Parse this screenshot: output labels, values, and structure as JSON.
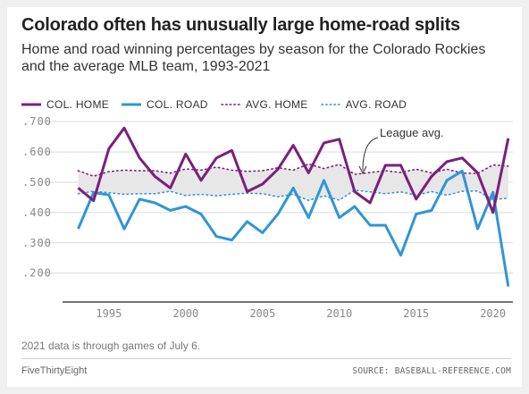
{
  "title": "Colorado often has unusually large home-road splits",
  "subtitle": "Home and road winning percentages by season for the Colorado Rockies and the average MLB team, 1993-2021",
  "footnote": "2021 data is through games of July 6.",
  "brand": "FiveThirtyEight",
  "source": "SOURCE: BASEBALL-REFERENCE.COM",
  "colors": {
    "col_home": "#7b1f7d",
    "col_road": "#3095d6",
    "band": "#e7e7e7",
    "grid": "#d9d9d9",
    "axis": "#222222"
  },
  "chart_data": {
    "type": "line",
    "x": [
      1993,
      1994,
      1995,
      1996,
      1997,
      1998,
      1999,
      2000,
      2001,
      2002,
      2003,
      2004,
      2005,
      2006,
      2007,
      2008,
      2009,
      2010,
      2011,
      2012,
      2013,
      2014,
      2015,
      2016,
      2017,
      2018,
      2019,
      2020,
      2021
    ],
    "series": [
      {
        "name": "COL. HOME",
        "style": "solid",
        "color": "#7b1f7d",
        "values": [
          0.481,
          0.439,
          0.611,
          0.679,
          0.58,
          0.519,
          0.481,
          0.593,
          0.506,
          0.58,
          0.605,
          0.469,
          0.494,
          0.543,
          0.622,
          0.531,
          0.63,
          0.642,
          0.469,
          0.432,
          0.556,
          0.556,
          0.444,
          0.519,
          0.568,
          0.58,
          0.531,
          0.4,
          0.645
        ]
      },
      {
        "name": "COL. ROAD",
        "style": "solid",
        "color": "#3095d6",
        "values": [
          0.346,
          0.466,
          0.458,
          0.346,
          0.444,
          0.432,
          0.407,
          0.42,
          0.395,
          0.321,
          0.309,
          0.37,
          0.333,
          0.395,
          0.481,
          0.383,
          0.506,
          0.383,
          0.42,
          0.358,
          0.358,
          0.259,
          0.395,
          0.407,
          0.506,
          0.537,
          0.346,
          0.467,
          0.156
        ]
      },
      {
        "name": "AVG. HOME",
        "style": "dotted",
        "color": "#7b1f7d",
        "values": [
          0.538,
          0.52,
          0.535,
          0.54,
          0.538,
          0.538,
          0.53,
          0.544,
          0.54,
          0.55,
          0.54,
          0.536,
          0.538,
          0.548,
          0.54,
          0.56,
          0.545,
          0.559,
          0.526,
          0.532,
          0.538,
          0.532,
          0.543,
          0.531,
          0.543,
          0.53,
          0.529,
          0.557,
          0.553
        ]
      },
      {
        "name": "AVG. ROAD",
        "style": "dotted",
        "color": "#3095d6",
        "values": [
          0.462,
          0.47,
          0.465,
          0.46,
          0.462,
          0.462,
          0.47,
          0.456,
          0.46,
          0.455,
          0.46,
          0.464,
          0.462,
          0.452,
          0.46,
          0.44,
          0.455,
          0.441,
          0.474,
          0.468,
          0.462,
          0.468,
          0.457,
          0.469,
          0.457,
          0.47,
          0.471,
          0.443,
          0.447
        ]
      }
    ],
    "xticks": [
      1995,
      2000,
      2005,
      2010,
      2015,
      2020
    ],
    "xtick_labels": [
      "1995",
      "2000",
      "2005",
      "2010",
      "2015",
      "2020"
    ],
    "yticks": [
      0.2,
      0.3,
      0.4,
      0.5,
      0.6,
      0.7
    ],
    "ytick_labels": [
      ".200",
      ".300",
      ".400",
      ".500",
      ".600",
      ".700"
    ],
    "xlim": [
      1992.1,
      2021.3
    ],
    "ylim": [
      0.14,
      0.73
    ],
    "annotation": {
      "text": "League avg.",
      "x": 2012,
      "y": 0.5
    },
    "grid": true,
    "legend": "top-left"
  }
}
